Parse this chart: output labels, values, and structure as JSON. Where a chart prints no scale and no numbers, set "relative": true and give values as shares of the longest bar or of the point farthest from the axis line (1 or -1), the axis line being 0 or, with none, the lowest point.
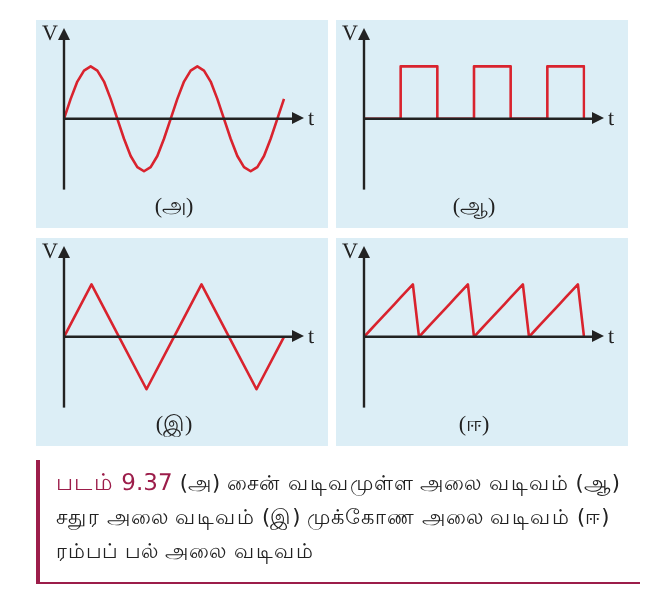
{
  "chart_data": [
    {
      "type": "line",
      "title": "(அ)",
      "xlabel": "t",
      "ylabel": "V",
      "relative": true,
      "tick_labels": false,
      "categories": [
        null,
        null,
        null,
        null,
        null,
        null,
        null,
        null,
        null,
        null,
        null,
        null,
        null,
        null,
        null,
        null,
        null,
        null,
        null,
        null,
        null,
        null,
        null,
        null,
        null,
        null,
        null,
        null,
        null,
        null,
        null,
        null,
        null,
        null
      ],
      "series": [
        {
          "color": "#d9232e",
          "values": [
            0,
            0.38,
            0.71,
            0.92,
            1,
            0.92,
            0.71,
            0.38,
            0,
            -0.38,
            -0.71,
            -0.92,
            -1,
            -0.92,
            -0.71,
            -0.38,
            0,
            0.38,
            0.71,
            0.92,
            1,
            0.92,
            0.71,
            0.38,
            0,
            -0.38,
            -0.71,
            -0.92,
            -1,
            -0.92,
            -0.71,
            -0.38,
            0,
            0.38
          ]
        }
      ]
    },
    {
      "type": "step",
      "title": "(ஆ)",
      "xlabel": "t",
      "ylabel": "V",
      "relative": true,
      "tick_labels": false,
      "categories": [
        null,
        null,
        null,
        null,
        null,
        null,
        null
      ],
      "series": [
        {
          "color": "#d9232e",
          "values": [
            0,
            1,
            0,
            1,
            0,
            1,
            0
          ]
        }
      ]
    },
    {
      "type": "line",
      "title": "(இ)",
      "xlabel": "t",
      "ylabel": "V",
      "relative": true,
      "tick_labels": false,
      "categories": [
        null,
        null,
        null,
        null,
        null,
        null,
        null,
        null,
        null
      ],
      "series": [
        {
          "color": "#d9232e",
          "values": [
            0,
            1,
            0,
            -1,
            0,
            1,
            0,
            -1,
            0
          ]
        }
      ]
    },
    {
      "type": "line",
      "title": "(ஈ)",
      "xlabel": "t",
      "ylabel": "V",
      "relative": true,
      "tick_labels": false,
      "categories": [
        null,
        null,
        null,
        null,
        null,
        null,
        null,
        null,
        null,
        null,
        null,
        null,
        null,
        null,
        null,
        null,
        null,
        null,
        null,
        null,
        null,
        null,
        null,
        null,
        null,
        null,
        null,
        null,
        null,
        null,
        null,
        null,
        null,
        null,
        null,
        null,
        null
      ],
      "series": [
        {
          "color": "#d9232e",
          "values": [
            0,
            0.125,
            0.25,
            0.375,
            0.5,
            0.625,
            0.75,
            0.875,
            1,
            0,
            0.125,
            0.25,
            0.375,
            0.5,
            0.625,
            0.75,
            0.875,
            1,
            0,
            0.125,
            0.25,
            0.375,
            0.5,
            0.625,
            0.75,
            0.875,
            1,
            0,
            0.125,
            0.25,
            0.375,
            0.5,
            0.625,
            0.75,
            0.875,
            1,
            0
          ]
        }
      ]
    },
    {
      "type": "other",
      "annotations": [
        "படம் 9.37",
        "(அ) சைன் வடிவமுள்ள அலை வடிவம் (ஆ) சதுர அலை வடிவம் (இ) முக்கோண அலை வடிவம் (ஈ) ரம்பப் பல் அலை வடிவம்"
      ]
    }
  ]
}
